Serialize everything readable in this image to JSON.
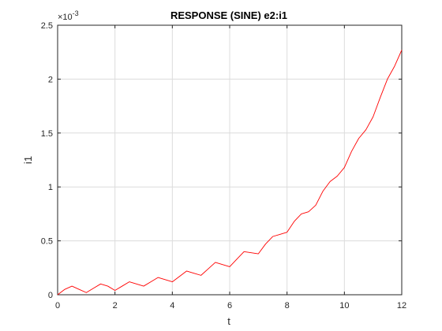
{
  "chart_data": {
    "type": "line",
    "title": "RESPONSE (SINE) e2:i1",
    "xlabel": "t",
    "ylabel": "i1",
    "xlim": [
      0,
      12
    ],
    "ylim": [
      0,
      0.0025
    ],
    "x_ticks": [
      0,
      2,
      4,
      6,
      8,
      10,
      12
    ],
    "x_tick_labels": [
      "0",
      "2",
      "4",
      "6",
      "8",
      "10",
      "12"
    ],
    "y_ticks": [
      0,
      0.0005,
      0.001,
      0.0015,
      0.002,
      0.0025
    ],
    "y_tick_labels": [
      "0",
      "0.5",
      "1",
      "1.5",
      "2",
      "2.5"
    ],
    "y_exponent_label": "×10",
    "y_exponent_power": "-3",
    "grid": true,
    "series": [
      {
        "color": "#ff0000",
        "x": [
          0,
          0.25,
          0.5,
          0.75,
          1,
          1.25,
          1.5,
          1.75,
          2,
          2.25,
          2.5,
          2.75,
          3,
          3.25,
          3.5,
          3.75,
          4,
          4.25,
          4.5,
          4.75,
          5,
          5.25,
          5.5,
          5.75,
          6,
          6.25,
          6.5,
          6.75,
          7,
          7.25,
          7.5,
          7.75,
          8,
          8.25,
          8.5,
          8.75,
          9,
          9.25,
          9.5,
          9.75,
          10,
          10.25,
          10.5,
          10.75,
          11,
          11.25,
          11.5,
          11.75,
          12
        ],
        "y": [
          0,
          5e-05,
          8e-05,
          5e-05,
          2e-05,
          6e-05,
          0.0001,
          8e-05,
          4e-05,
          8e-05,
          0.00012,
          0.0001,
          8e-05,
          0.00012,
          0.00016,
          0.00014,
          0.00012,
          0.00017,
          0.00022,
          0.0002,
          0.00018,
          0.00024,
          0.0003,
          0.00028,
          0.00026,
          0.00033,
          0.0004,
          0.00039,
          0.00038,
          0.00047,
          0.00054,
          0.00056,
          0.00058,
          0.00068,
          0.00075,
          0.00077,
          0.00083,
          0.00096,
          0.00105,
          0.0011,
          0.00118,
          0.00133,
          0.00145,
          0.00153,
          0.00165,
          0.00183,
          0.002,
          0.00212,
          0.00227
        ]
      }
    ]
  }
}
